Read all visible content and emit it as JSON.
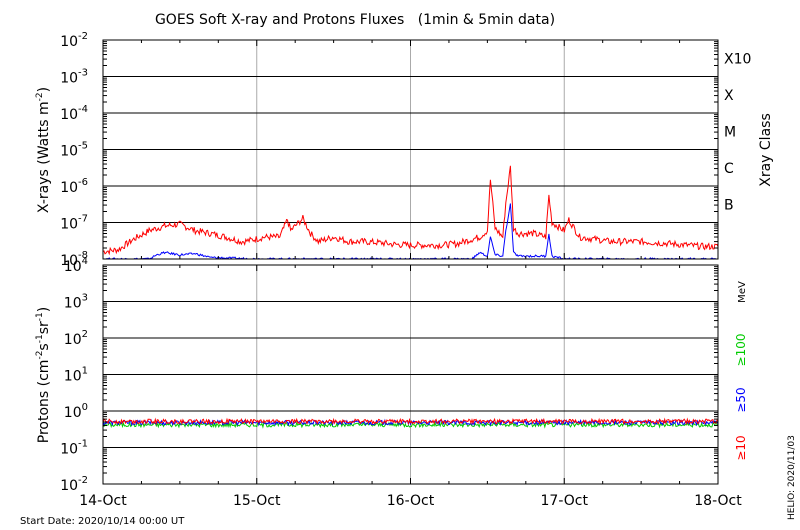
{
  "title": "GOES Soft X-ray and Protons Fluxes   (1min & 5min data)",
  "start_date": "Start Date: 2020/10/14 00:00 UT",
  "made_by": "HELIO: 2020/11/03",
  "chart_data": [
    {
      "type": "line",
      "panel": "xray",
      "ylabel_main": "X-rays (Watts m",
      "ylabel_exp": "-2",
      "ylabel_close": ")",
      "yscale": "log",
      "ylim_exp": [
        -8,
        -2
      ],
      "y_ticks": [
        {
          "base": "10",
          "exp": "-2"
        },
        {
          "base": "10",
          "exp": "-3"
        },
        {
          "base": "10",
          "exp": "-4"
        },
        {
          "base": "10",
          "exp": "-5"
        },
        {
          "base": "10",
          "exp": "-6"
        },
        {
          "base": "10",
          "exp": "-7"
        },
        {
          "base": "10",
          "exp": "-8"
        }
      ],
      "right_label": "Xray Class",
      "classes": [
        {
          "label": "X10",
          "exp": -3
        },
        {
          "label": "X",
          "exp": -4
        },
        {
          "label": "M",
          "exp": -5
        },
        {
          "label": "C",
          "exp": -6
        },
        {
          "label": "B",
          "exp": -7
        }
      ],
      "grid": "horizontal lines at each decade",
      "series": [
        {
          "color": "#ff0000",
          "x": [
            0,
            0.1,
            0.2,
            0.3,
            0.4,
            0.5,
            0.6,
            0.7,
            0.8,
            0.9,
            0.95,
            1.05,
            1.15,
            1.2,
            1.22,
            1.3,
            1.35,
            1.4,
            1.5,
            1.6,
            1.7,
            1.8,
            1.9,
            2.0,
            2.1,
            2.2,
            2.3,
            2.4,
            2.45,
            2.5,
            2.52,
            2.55,
            2.6,
            2.62,
            2.65,
            2.67,
            2.7,
            2.8,
            2.88,
            2.9,
            2.92,
            3.0,
            3.03,
            3.1,
            3.2,
            3.3,
            3.4,
            3.5,
            3.6,
            3.7,
            3.8,
            3.9,
            4.0
          ],
          "values": [
            1.6e-08,
            1.8e-08,
            3.5e-08,
            6e-08,
            8e-08,
            9e-08,
            6e-08,
            5e-08,
            4e-08,
            3e-08,
            3.2e-08,
            4e-08,
            4e-08,
            1.2e-07,
            6e-08,
            1.3e-07,
            5e-08,
            3e-08,
            4e-08,
            3e-08,
            3e-08,
            2.8e-08,
            2.5e-08,
            2.4e-08,
            2.4e-08,
            2.4e-08,
            2.6e-08,
            3.5e-08,
            4e-08,
            6e-08,
            1.5e-06,
            7e-08,
            4e-08,
            3.5e-07,
            3.3e-06,
            7e-08,
            5e-08,
            5e-08,
            4e-08,
            5.5e-07,
            1e-07,
            6e-08,
            1.2e-07,
            4e-08,
            3.5e-08,
            3e-08,
            3e-08,
            3e-08,
            2.8e-08,
            2.6e-08,
            2.4e-08,
            2.2e-08,
            2.2e-08
          ]
        },
        {
          "color": "#0000ff",
          "x": [
            0,
            0.3,
            0.35,
            0.4,
            0.5,
            0.6,
            0.7,
            1.0,
            1.5,
            2.0,
            2.4,
            2.45,
            2.5,
            2.52,
            2.55,
            2.6,
            2.62,
            2.65,
            2.67,
            2.7,
            2.8,
            2.88,
            2.9,
            2.92,
            3.0,
            3.5,
            4.0
          ],
          "values": [
            1e-08,
            1e-08,
            1.3e-08,
            1.5e-08,
            1.3e-08,
            1.4e-08,
            1.1e-08,
            1e-08,
            1e-08,
            1e-08,
            1e-08,
            1.5e-08,
            1.2e-08,
            4e-08,
            1.3e-08,
            1.2e-08,
            6e-08,
            3.2e-07,
            1.5e-08,
            1.2e-08,
            1.2e-08,
            1.2e-08,
            5e-08,
            1.2e-08,
            1e-08,
            1e-08,
            1e-08
          ]
        }
      ]
    },
    {
      "type": "line",
      "panel": "protons",
      "ylabel_main": "Protons (cm",
      "ylabel_exps": [
        "-2",
        "-1",
        "-1"
      ],
      "yscale": "log",
      "ylim_exp": [
        -2,
        4
      ],
      "y_ticks": [
        {
          "base": "10",
          "exp": "4"
        },
        {
          "base": "10",
          "exp": "3"
        },
        {
          "base": "10",
          "exp": "2"
        },
        {
          "base": "10",
          "exp": "1"
        },
        {
          "base": "10",
          "exp": "0"
        },
        {
          "base": "10",
          "exp": "-1"
        },
        {
          "base": "10",
          "exp": "-2"
        }
      ],
      "threshold": 10,
      "unit_label": "MeV",
      "series": [
        {
          "name": "≥100",
          "color": "#00cc00",
          "level": 0.42
        },
        {
          "name": "≥50",
          "color": "#0000ff",
          "level": 0.48
        },
        {
          "name": "≥10",
          "color": "#ff0000",
          "level": 0.52
        }
      ]
    }
  ],
  "x_ticks": [
    "14-Oct",
    "15-Oct",
    "16-Oct",
    "17-Oct",
    "18-Oct"
  ],
  "xlim_days": [
    0,
    4
  ]
}
